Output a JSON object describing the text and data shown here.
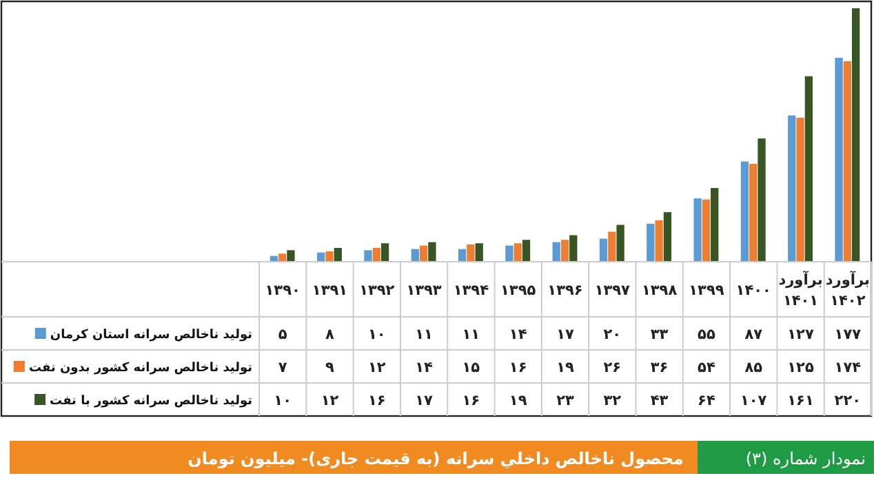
{
  "chart_data": {
    "type": "bar",
    "title": "محصول ناخالص داخلي سرانه (به قيمت جاری)- ميليون تومان",
    "annotations": [
      "نمودار شماره (۳)"
    ],
    "categories": [
      "۱۳۹۰",
      "۱۳۹۱",
      "۱۳۹۲",
      "۱۳۹۳",
      "۱۳۹۴",
      "۱۳۹۵",
      "۱۳۹۶",
      "۱۳۹۷",
      "۱۳۹۸",
      "۱۳۹۹",
      "۱۴۰۰",
      "برآورد ۱۴۰۱",
      "برآورد ۱۴۰۲"
    ],
    "series": [
      {
        "name": "تولید ناخالص سرانه استان کرمان",
        "color": "#5b9bd5",
        "values": [
          5,
          8,
          10,
          11,
          11,
          14,
          17,
          20,
          33,
          55,
          87,
          127,
          177
        ],
        "value_labels": [
          "۵",
          "۸",
          "۱۰",
          "۱۱",
          "۱۱",
          "۱۴",
          "۱۷",
          "۲۰",
          "۳۳",
          "۵۵",
          "۸۷",
          "۱۲۷",
          "۱۷۷"
        ]
      },
      {
        "name": "تولید ناخالص سرانه کشور بدون نفت",
        "color": "#ed7d31",
        "values": [
          7,
          9,
          12,
          14,
          15,
          16,
          19,
          26,
          36,
          54,
          85,
          125,
          174
        ],
        "value_labels": [
          "۷",
          "۹",
          "۱۲",
          "۱۴",
          "۱۵",
          "۱۶",
          "۱۹",
          "۲۶",
          "۳۶",
          "۵۴",
          "۸۵",
          "۱۲۵",
          "۱۷۴"
        ]
      },
      {
        "name": "تولید ناخالص سرانه کشور با نفت",
        "color": "#375623",
        "values": [
          10,
          12,
          16,
          17,
          16,
          19,
          23,
          32,
          43,
          64,
          107,
          161,
          220
        ],
        "value_labels": [
          "۱۰",
          "۱۲",
          "۱۶",
          "۱۷",
          "۱۶",
          "۱۹",
          "۲۳",
          "۳۲",
          "۴۳",
          "۶۴",
          "۱۰۷",
          "۱۶۱",
          "۲۲۰"
        ]
      }
    ],
    "legend": "left"
  }
}
